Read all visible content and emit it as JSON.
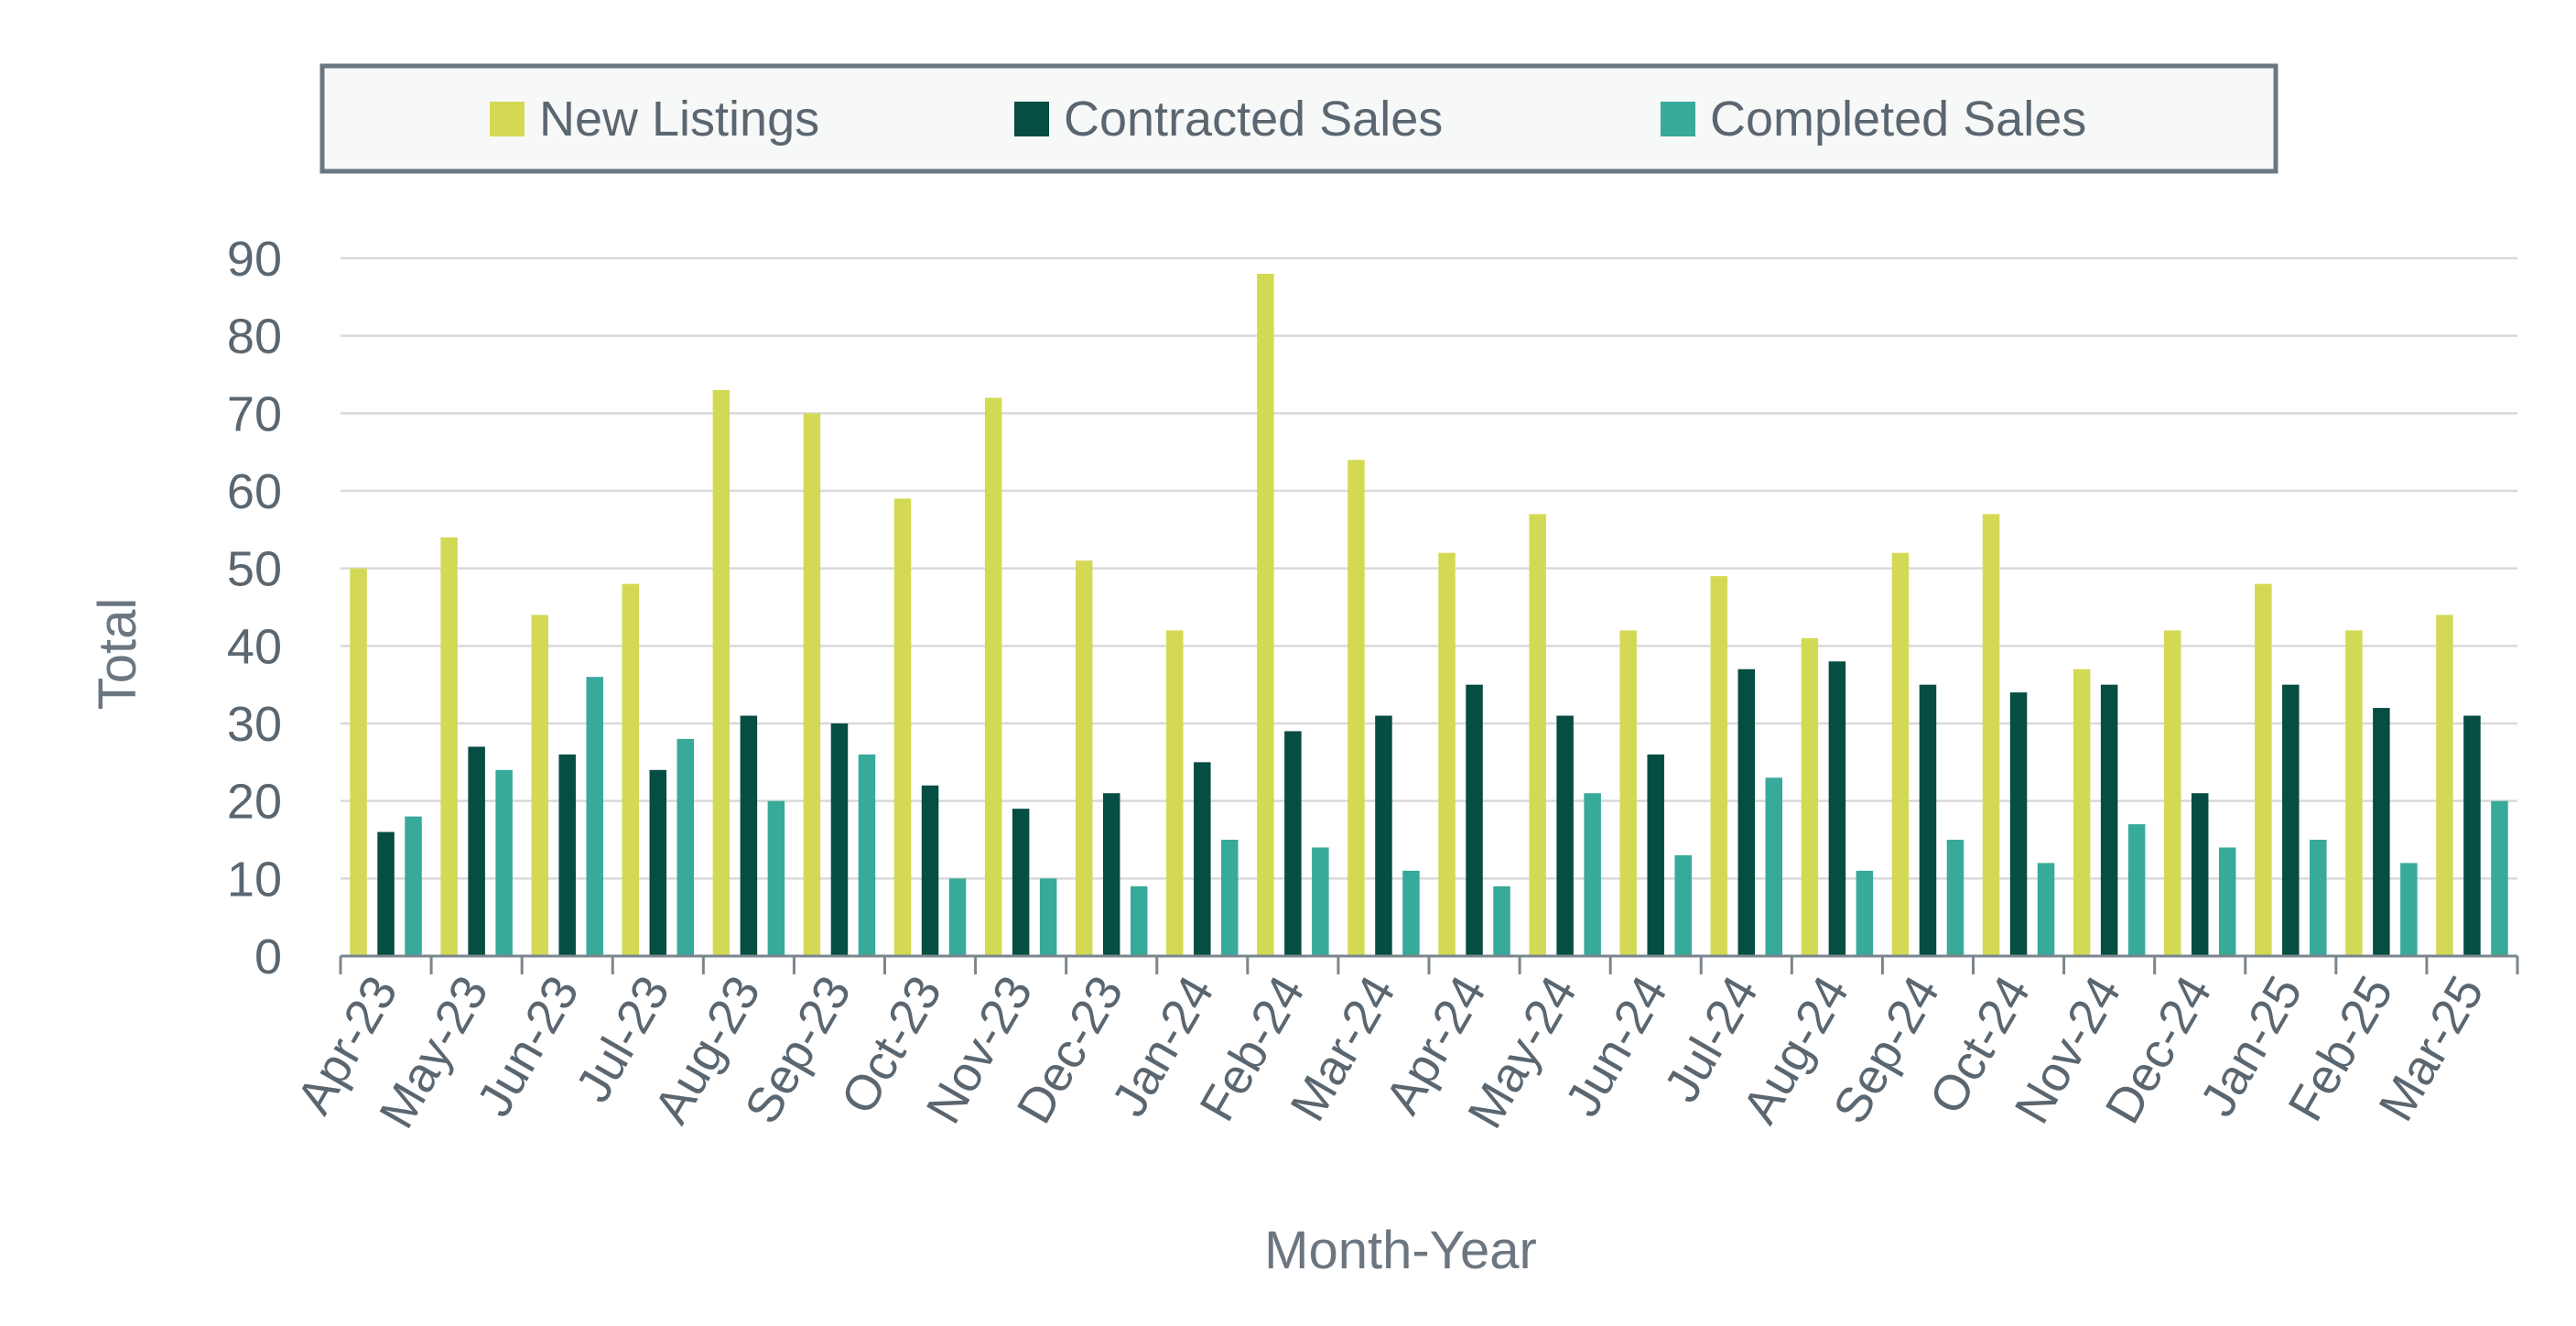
{
  "chart_data": {
    "type": "bar",
    "xlabel": "Month-Year",
    "ylabel": "Total",
    "ylim": [
      0,
      90
    ],
    "yticks": [
      0,
      10,
      20,
      30,
      40,
      50,
      60,
      70,
      80,
      90
    ],
    "grid": "horizontal",
    "legend_position": "top",
    "categories": [
      "Apr-23",
      "May-23",
      "Jun-23",
      "Jul-23",
      "Aug-23",
      "Sep-23",
      "Oct-23",
      "Nov-23",
      "Dec-23",
      "Jan-24",
      "Feb-24",
      "Mar-24",
      "Apr-24",
      "May-24",
      "Jun-24",
      "Jul-24",
      "Aug-24",
      "Sep-24",
      "Oct-24",
      "Nov-24",
      "Dec-24",
      "Jan-25",
      "Feb-25",
      "Mar-25"
    ],
    "series": [
      {
        "name": "New Listings",
        "color": "#d4d955",
        "values": [
          50,
          54,
          44,
          48,
          73,
          70,
          59,
          72,
          51,
          42,
          88,
          64,
          52,
          57,
          42,
          49,
          41,
          52,
          57,
          37,
          42,
          48,
          42,
          44
        ]
      },
      {
        "name": "Contracted Sales",
        "color": "#064d43",
        "values": [
          16,
          27,
          26,
          24,
          31,
          30,
          22,
          19,
          21,
          25,
          29,
          31,
          35,
          31,
          26,
          37,
          38,
          35,
          34,
          35,
          21,
          35,
          32,
          31
        ]
      },
      {
        "name": "Completed Sales",
        "color": "#37aa9a",
        "values": [
          18,
          24,
          36,
          28,
          20,
          26,
          10,
          10,
          9,
          15,
          14,
          11,
          9,
          21,
          13,
          23,
          11,
          15,
          12,
          17,
          14,
          15,
          12,
          20
        ]
      }
    ]
  }
}
